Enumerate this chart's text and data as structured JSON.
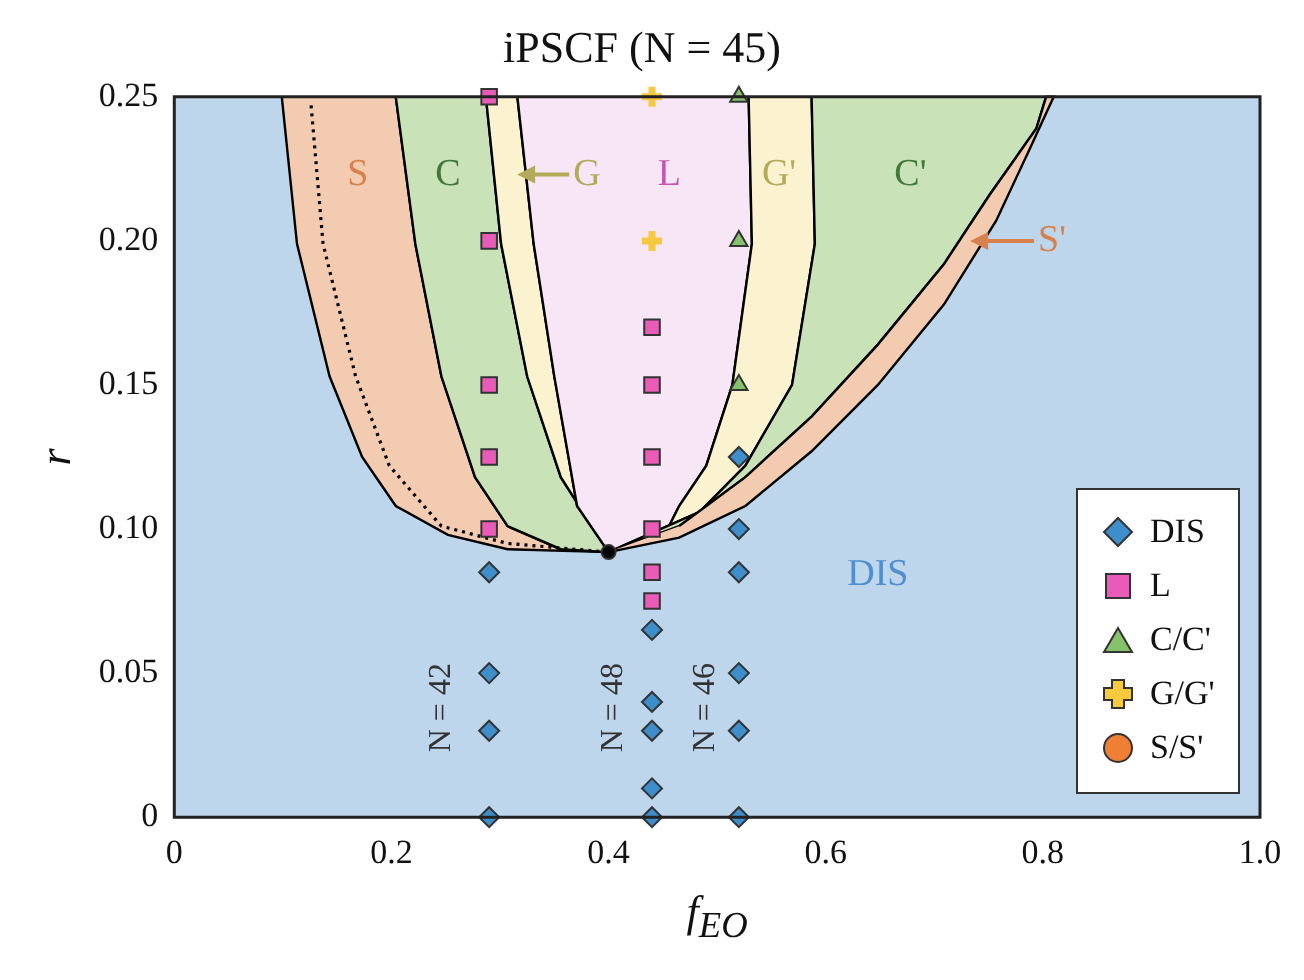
{
  "chart_data": {
    "type": "scatter",
    "title": "iPSCF (N = 45)",
    "xlabel": "f$_{EO}$",
    "ylabel": "r",
    "xlim": [
      0,
      1
    ],
    "xticks": [
      0,
      0.2,
      0.4,
      0.6,
      0.8,
      {
        "value": 1,
        "label": "1.0"
      }
    ],
    "ylim": [
      0,
      0.25
    ],
    "yticks": [
      0,
      0.05,
      {
        "value": 0.1,
        "label": "0.10"
      },
      0.15,
      {
        "value": 0.2,
        "label": "0.20"
      },
      0.25
    ],
    "grid": false,
    "legend": "bottom right",
    "series": [
      {
        "type": "area",
        "color": "#f2cbb0",
        "x": [
          0.099,
          0.113,
          0.143,
          0.173,
          0.204,
          0.252,
          0.307,
          0.4,
          0.356,
          0.307,
          0.277,
          0.246,
          0.222,
          0.204
        ],
        "values": [
          0.25,
          0.199,
          0.153,
          0.125,
          0.108,
          0.098,
          0.093,
          0.092,
          0.093,
          0.101,
          0.118,
          0.153,
          0.199,
          0.25
        ]
      },
      {
        "type": "area",
        "color": "#c9e2b8",
        "x": [
          0.204,
          0.222,
          0.246,
          0.277,
          0.307,
          0.356,
          0.4,
          0.356,
          0.325,
          0.301,
          0.287
        ],
        "values": [
          0.25,
          0.199,
          0.153,
          0.118,
          0.101,
          0.093,
          0.092,
          0.118,
          0.153,
          0.199,
          0.25
        ]
      },
      {
        "type": "area",
        "color": "#fbf3cf",
        "x": [
          0.287,
          0.301,
          0.325,
          0.356,
          0.4,
          0.371,
          0.35,
          0.331,
          0.316
        ],
        "values": [
          0.25,
          0.199,
          0.153,
          0.118,
          0.092,
          0.108,
          0.153,
          0.199,
          0.25
        ]
      },
      {
        "type": "area",
        "color": "#f7e6f6",
        "x": [
          0.316,
          0.331,
          0.35,
          0.371,
          0.4,
          0.453,
          0.465,
          0.49,
          0.514,
          0.532,
          0.529
        ],
        "values": [
          0.25,
          0.199,
          0.153,
          0.108,
          0.092,
          0.099,
          0.108,
          0.122,
          0.15,
          0.199,
          0.25
        ]
      },
      {
        "type": "area",
        "color": "#fbf3cf",
        "x": [
          0.529,
          0.532,
          0.514,
          0.49,
          0.465,
          0.453,
          0.4,
          0.484,
          0.526,
          0.569,
          0.59,
          0.587
        ],
        "values": [
          0.25,
          0.199,
          0.15,
          0.122,
          0.108,
          0.099,
          0.092,
          0.106,
          0.122,
          0.15,
          0.199,
          0.25
        ]
      },
      {
        "type": "area",
        "color": "#c9e2b8",
        "x": [
          0.587,
          0.59,
          0.569,
          0.526,
          0.484,
          0.4,
          0.465,
          0.526,
          0.587,
          0.648,
          0.709,
          0.751,
          0.794,
          0.803
        ],
        "values": [
          0.25,
          0.199,
          0.15,
          0.122,
          0.106,
          0.092,
          0.101,
          0.118,
          0.139,
          0.164,
          0.192,
          0.216,
          0.239,
          0.25
        ]
      },
      {
        "type": "area",
        "color": "#f2cbb0",
        "x": [
          0.4,
          0.465,
          0.526,
          0.587,
          0.648,
          0.709,
          0.757,
          0.788,
          0.81,
          0.803,
          0.794,
          0.751,
          0.709,
          0.648,
          0.587,
          0.526,
          0.465
        ],
        "values": [
          0.092,
          0.097,
          0.108,
          0.127,
          0.15,
          0.178,
          0.207,
          0.232,
          0.25,
          0.25,
          0.239,
          0.216,
          0.192,
          0.164,
          0.139,
          0.118,
          0.101
        ]
      },
      {
        "type": "line",
        "color": "#000000",
        "line_style": "dotted",
        "marker": "none",
        "x": [
          0.126,
          0.137,
          0.167,
          0.198,
          0.246,
          0.307,
          0.4
        ],
        "values": [
          0.247,
          0.199,
          0.153,
          0.122,
          0.101,
          0.095,
          0.092
        ]
      },
      {
        "type": "scatter",
        "color": "#000000",
        "marker": "circle",
        "x": [
          0.4
        ],
        "values": [
          0.092
        ]
      },
      {
        "name": "DIS",
        "color": "#3e8ecb",
        "marker": "diamond",
        "x": [
          0.29,
          0.29,
          0.29,
          0.29,
          0.44,
          0.44,
          0.44,
          0.44,
          0.44,
          0.52,
          0.52,
          0.52,
          0.52,
          0.52,
          0.52
        ],
        "values": [
          0.085,
          0.05,
          0.03,
          0,
          0.065,
          0.04,
          0.03,
          0.01,
          0,
          0.125,
          0.1,
          0.085,
          0.05,
          0.03,
          0
        ]
      },
      {
        "name": "L",
        "color": "#e85cb8",
        "marker": "square",
        "x": [
          0.29,
          0.29,
          0.29,
          0.29,
          0.29,
          0.44,
          0.44,
          0.44,
          0.44,
          0.44,
          0.44
        ],
        "values": [
          0.25,
          0.2,
          0.15,
          0.125,
          0.1,
          0.17,
          0.15,
          0.125,
          0.1,
          0.085,
          0.075
        ]
      },
      {
        "name": "C/C'",
        "color": "#86c26b",
        "marker": "triangle",
        "x": [
          0.52,
          0.52,
          0.52
        ],
        "values": [
          0.25,
          0.2,
          0.15
        ]
      },
      {
        "name": "G/G'",
        "color": "#f6c93f",
        "marker": "cross",
        "x": [
          0.44,
          0.44
        ],
        "values": [
          0.25,
          0.2
        ]
      },
      {
        "name": "S/S'",
        "color": "#f07f36",
        "marker": "circle"
      }
    ],
    "bands": [
      {
        "axis": "y",
        "from": 0,
        "to": 0.25,
        "color": "#bed6ec"
      }
    ],
    "annotations": [
      "S",
      "C",
      "G",
      "L",
      "G'",
      "C'",
      {
        "text": "S'",
        "x": 0.733,
        "y": 0.2
      },
      "DIS",
      "N = 42",
      "N = 48",
      "N = 46"
    ]
  }
}
